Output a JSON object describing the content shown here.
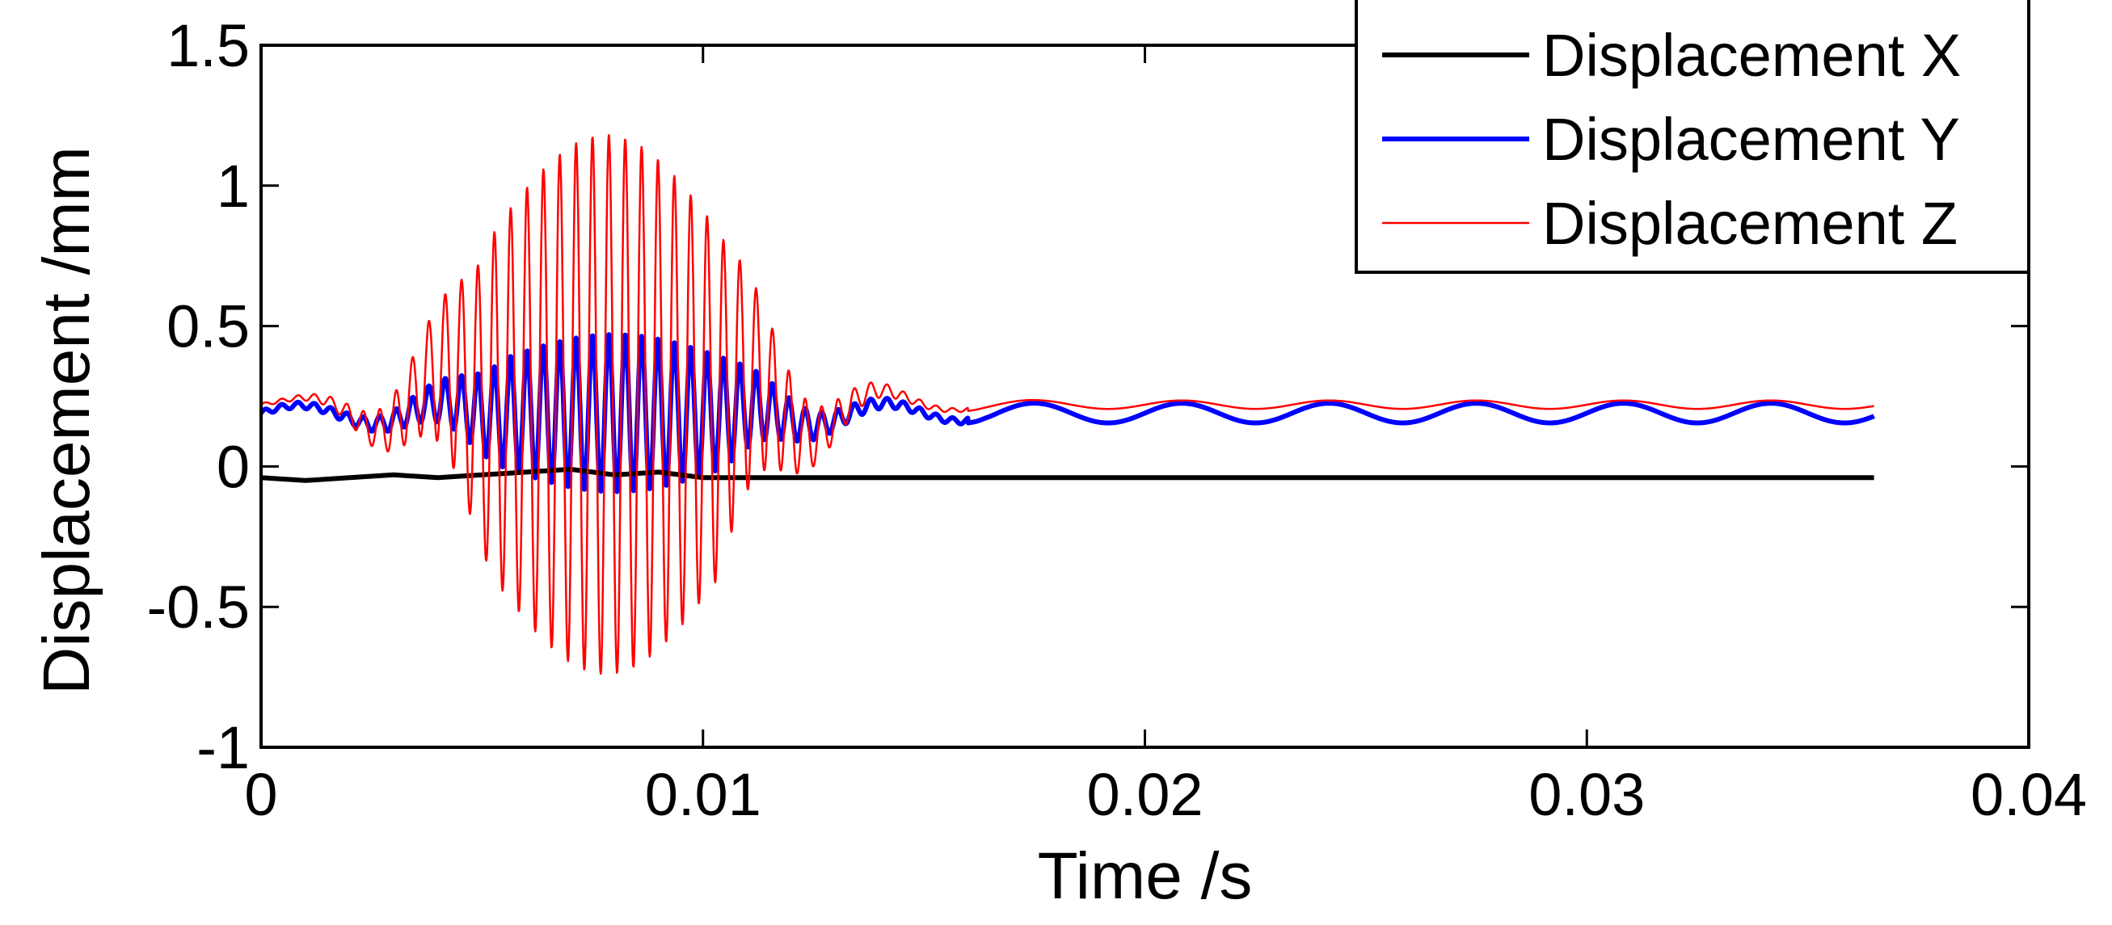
{
  "chart_data": {
    "type": "line",
    "title": "",
    "xlabel": "Time /s",
    "ylabel": "Displacement /mm",
    "xlim": [
      0,
      0.04
    ],
    "ylim": [
      -1,
      1.5
    ],
    "xticks": [
      0,
      0.01,
      0.02,
      0.03,
      0.04
    ],
    "xtick_labels": [
      "0",
      "0.01",
      "0.02",
      "0.03",
      "0.04"
    ],
    "yticks": [
      -1,
      -0.5,
      0,
      0.5,
      1,
      1.5
    ],
    "ytick_labels": [
      "-1",
      "-0.5",
      "0",
      "0.5",
      "1",
      "1.5"
    ],
    "grid": false,
    "legend_position": "top-right",
    "series": [
      {
        "name": "Displacement X",
        "color": "#000000",
        "line_weight": "thick",
        "description": "nearly constant near -0.04 mm with small wiggles before 0.012 s",
        "x": [
          0,
          0.001,
          0.002,
          0.003,
          0.004,
          0.005,
          0.006,
          0.007,
          0.008,
          0.009,
          0.01,
          0.011,
          0.012,
          0.014,
          0.016,
          0.018,
          0.02,
          0.025,
          0.03,
          0.0365
        ],
        "y": [
          -0.04,
          -0.05,
          -0.04,
          -0.03,
          -0.04,
          -0.03,
          -0.02,
          -0.01,
          -0.03,
          -0.02,
          -0.04,
          -0.04,
          -0.04,
          -0.04,
          -0.04,
          -0.04,
          -0.04,
          -0.04,
          -0.04,
          -0.04
        ]
      },
      {
        "name": "Displacement Y",
        "color": "#0000ff",
        "line_weight": "thick",
        "description": "oscillation about ~0.19 mm, amplitude peaks ~0.28 near 0.008 s then decays to slow ripple 0.16-0.23",
        "x_start": 0,
        "x_end": 0.0365,
        "mean": 0.19,
        "fast_frequency_hz": 2700,
        "slow_frequency_hz": 300,
        "peak_amplitude": 0.28,
        "peak_time": 0.008,
        "settled_amplitude": 0.035,
        "y_range": [
          -0.1,
          0.47
        ]
      },
      {
        "name": "Displacement Z",
        "color": "#ff0000",
        "line_weight": "thin",
        "description": "large oscillation about ~0.22 mm, peaks ~1.18 and troughs ~-0.73 near 0.008 s, decaying to ~0.24-0.27 by 0.02 s",
        "x_start": 0,
        "x_end": 0.0365,
        "mean": 0.22,
        "fast_frequency_hz": 2700,
        "slow_frequency_hz": 300,
        "peak_amplitude": 0.96,
        "peak_time": 0.0078,
        "settled_amplitude": 0.015,
        "y_range": [
          -0.73,
          1.19
        ]
      }
    ]
  }
}
